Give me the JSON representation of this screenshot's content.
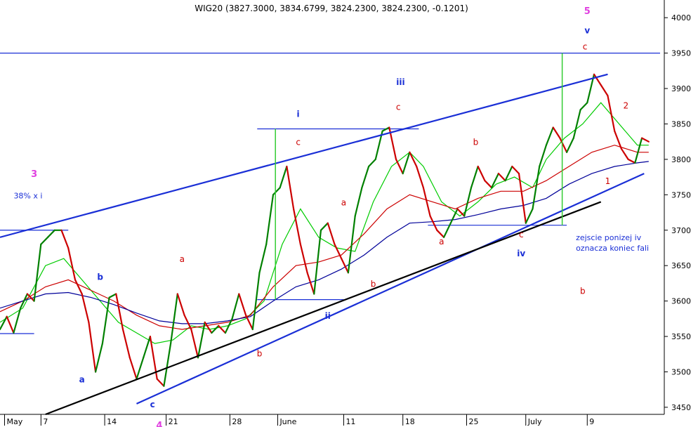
{
  "chart_data": {
    "type": "line",
    "title": "WIG20 (3827.3000, 3834.6799, 3824.2300, 3824.2300, -0.1201)",
    "ylim": [
      3440,
      4020
    ],
    "y_ticks": [
      "3450",
      "3500",
      "3550",
      "3600",
      "3650",
      "3700",
      "3750",
      "3800",
      "3850",
      "3900",
      "3950",
      "4000"
    ],
    "x_ticks": [
      "May",
      "7",
      "14",
      "21",
      "28",
      "June",
      "11",
      "18",
      "25",
      "July",
      "9"
    ],
    "grid": false,
    "colors": {
      "price_up": "#008000",
      "price_down": "#cc0000",
      "ma_fast": "#00cc00",
      "ma_mid": "#cc0000",
      "ma_slow": "#000099",
      "trend_blue": "#1a2fd6",
      "trend_black": "#000000",
      "level_line": "#1a2fd6",
      "marker_green": "#33cc33",
      "label_red": "#cc0000",
      "label_navy": "#1a2fd6",
      "label_magenta": "#e040e0"
    },
    "price_path": [
      [
        0,
        3560
      ],
      [
        3,
        3578
      ],
      [
        6,
        3555
      ],
      [
        9,
        3590
      ],
      [
        12,
        3610
      ],
      [
        15,
        3600
      ],
      [
        18,
        3680
      ],
      [
        21,
        3690
      ],
      [
        24,
        3700
      ],
      [
        27,
        3700
      ],
      [
        30,
        3675
      ],
      [
        33,
        3630
      ],
      [
        36,
        3610
      ],
      [
        39,
        3570
      ],
      [
        42,
        3500
      ],
      [
        45,
        3540
      ],
      [
        48,
        3605
      ],
      [
        51,
        3610
      ],
      [
        54,
        3560
      ],
      [
        57,
        3520
      ],
      [
        60,
        3490
      ],
      [
        63,
        3520
      ],
      [
        66,
        3550
      ],
      [
        69,
        3490
      ],
      [
        72,
        3480
      ],
      [
        75,
        3540
      ],
      [
        78,
        3610
      ],
      [
        81,
        3580
      ],
      [
        84,
        3560
      ],
      [
        87,
        3520
      ],
      [
        90,
        3570
      ],
      [
        93,
        3555
      ],
      [
        96,
        3565
      ],
      [
        99,
        3555
      ],
      [
        102,
        3575
      ],
      [
        105,
        3610
      ],
      [
        108,
        3580
      ],
      [
        111,
        3560
      ],
      [
        114,
        3640
      ],
      [
        117,
        3680
      ],
      [
        120,
        3750
      ],
      [
        123,
        3760
      ],
      [
        126,
        3790
      ],
      [
        129,
        3730
      ],
      [
        132,
        3680
      ],
      [
        135,
        3640
      ],
      [
        138,
        3610
      ],
      [
        141,
        3700
      ],
      [
        144,
        3710
      ],
      [
        147,
        3680
      ],
      [
        150,
        3660
      ],
      [
        153,
        3640
      ],
      [
        156,
        3720
      ],
      [
        159,
        3760
      ],
      [
        162,
        3790
      ],
      [
        165,
        3800
      ],
      [
        168,
        3840
      ],
      [
        171,
        3845
      ],
      [
        174,
        3800
      ],
      [
        177,
        3780
      ],
      [
        180,
        3810
      ],
      [
        183,
        3790
      ],
      [
        186,
        3760
      ],
      [
        189,
        3720
      ],
      [
        192,
        3700
      ],
      [
        195,
        3690
      ],
      [
        198,
        3710
      ],
      [
        201,
        3730
      ],
      [
        204,
        3720
      ],
      [
        207,
        3760
      ],
      [
        210,
        3790
      ],
      [
        213,
        3770
      ],
      [
        216,
        3760
      ],
      [
        219,
        3780
      ],
      [
        222,
        3770
      ],
      [
        225,
        3790
      ],
      [
        228,
        3780
      ],
      [
        231,
        3710
      ],
      [
        234,
        3730
      ],
      [
        237,
        3790
      ],
      [
        240,
        3820
      ],
      [
        243,
        3845
      ],
      [
        246,
        3830
      ],
      [
        249,
        3810
      ],
      [
        252,
        3830
      ],
      [
        255,
        3870
      ],
      [
        258,
        3880
      ],
      [
        261,
        3920
      ],
      [
        264,
        3905
      ],
      [
        267,
        3890
      ],
      [
        270,
        3840
      ],
      [
        273,
        3815
      ],
      [
        276,
        3800
      ],
      [
        279,
        3795
      ],
      [
        282,
        3830
      ],
      [
        285,
        3825
      ]
    ],
    "moving_averages": [
      {
        "name": "",
        "color": "ma_fast",
        "points": [
          [
            0,
            3570
          ],
          [
            10,
            3590
          ],
          [
            20,
            3650
          ],
          [
            28,
            3660
          ],
          [
            36,
            3630
          ],
          [
            44,
            3600
          ],
          [
            52,
            3570
          ],
          [
            60,
            3555
          ],
          [
            68,
            3540
          ],
          [
            76,
            3545
          ],
          [
            84,
            3565
          ],
          [
            92,
            3560
          ],
          [
            100,
            3565
          ],
          [
            108,
            3575
          ],
          [
            116,
            3600
          ],
          [
            124,
            3680
          ],
          [
            132,
            3730
          ],
          [
            140,
            3690
          ],
          [
            148,
            3675
          ],
          [
            156,
            3670
          ],
          [
            164,
            3740
          ],
          [
            172,
            3790
          ],
          [
            180,
            3810
          ],
          [
            186,
            3790
          ],
          [
            194,
            3740
          ],
          [
            202,
            3720
          ],
          [
            210,
            3740
          ],
          [
            218,
            3765
          ],
          [
            226,
            3775
          ],
          [
            234,
            3760
          ],
          [
            240,
            3800
          ],
          [
            248,
            3830
          ],
          [
            256,
            3850
          ],
          [
            264,
            3880
          ],
          [
            272,
            3850
          ],
          [
            280,
            3820
          ],
          [
            285,
            3820
          ]
        ]
      },
      {
        "name": "",
        "color": "ma_mid",
        "points": [
          [
            0,
            3585
          ],
          [
            10,
            3600
          ],
          [
            20,
            3620
          ],
          [
            30,
            3630
          ],
          [
            40,
            3615
          ],
          [
            50,
            3600
          ],
          [
            60,
            3580
          ],
          [
            70,
            3565
          ],
          [
            80,
            3560
          ],
          [
            90,
            3565
          ],
          [
            100,
            3570
          ],
          [
            110,
            3580
          ],
          [
            120,
            3620
          ],
          [
            130,
            3650
          ],
          [
            140,
            3655
          ],
          [
            150,
            3665
          ],
          [
            160,
            3695
          ],
          [
            170,
            3730
          ],
          [
            180,
            3750
          ],
          [
            190,
            3740
          ],
          [
            200,
            3730
          ],
          [
            210,
            3745
          ],
          [
            220,
            3755
          ],
          [
            230,
            3755
          ],
          [
            240,
            3770
          ],
          [
            250,
            3790
          ],
          [
            260,
            3810
          ],
          [
            270,
            3820
          ],
          [
            280,
            3810
          ],
          [
            285,
            3810
          ]
        ]
      },
      {
        "name": "",
        "color": "ma_slow",
        "points": [
          [
            0,
            3590
          ],
          [
            10,
            3600
          ],
          [
            20,
            3610
          ],
          [
            30,
            3612
          ],
          [
            40,
            3605
          ],
          [
            50,
            3595
          ],
          [
            60,
            3583
          ],
          [
            70,
            3572
          ],
          [
            80,
            3568
          ],
          [
            90,
            3568
          ],
          [
            100,
            3572
          ],
          [
            110,
            3578
          ],
          [
            120,
            3600
          ],
          [
            130,
            3620
          ],
          [
            140,
            3630
          ],
          [
            150,
            3645
          ],
          [
            160,
            3665
          ],
          [
            170,
            3690
          ],
          [
            180,
            3710
          ],
          [
            190,
            3712
          ],
          [
            200,
            3715
          ],
          [
            210,
            3722
          ],
          [
            220,
            3730
          ],
          [
            230,
            3735
          ],
          [
            240,
            3745
          ],
          [
            250,
            3765
          ],
          [
            260,
            3780
          ],
          [
            270,
            3790
          ],
          [
            280,
            3795
          ],
          [
            285,
            3797
          ]
        ]
      }
    ],
    "trendlines": [
      {
        "color": "trend_blue",
        "width": 2.2,
        "from": [
          0,
          3690
        ],
        "to": [
          267,
          3920
        ]
      },
      {
        "color": "trend_blue",
        "width": 2.2,
        "from": [
          60,
          3455
        ],
        "to": [
          283,
          3780
        ]
      },
      {
        "color": "trend_black",
        "width": 2.2,
        "from": [
          20,
          3440
        ],
        "to": [
          264,
          3740
        ]
      }
    ],
    "level_lines": [
      {
        "color": "level_line",
        "from": [
          0,
          3950
        ],
        "to": [
          290,
          3950
        ]
      },
      {
        "color": "level_line",
        "from": [
          0,
          3700
        ],
        "to": [
          30,
          3700
        ]
      },
      {
        "color": "level_line",
        "from": [
          0,
          3554
        ],
        "to": [
          15,
          3554
        ]
      },
      {
        "color": "level_line",
        "from": [
          113,
          3843
        ],
        "to": [
          184,
          3843
        ]
      },
      {
        "color": "level_line",
        "from": [
          113,
          3602
        ],
        "to": [
          151,
          3602
        ]
      },
      {
        "color": "level_line",
        "from": [
          188,
          3707
        ],
        "to": [
          249,
          3707
        ]
      }
    ],
    "vertical_markers": [
      {
        "color": "marker_green",
        "x": 121,
        "y_from": 3602,
        "y_to": 3843
      },
      {
        "color": "marker_green",
        "x": 247,
        "y_from": 3707,
        "y_to": 3950
      }
    ],
    "x_tick_positions": [
      2,
      18,
      46,
      73,
      101,
      122,
      151,
      177,
      205,
      231,
      258
    ],
    "annotations": [
      {
        "text": "3",
        "x": 15,
        "y": 3775,
        "color": "label_magenta"
      },
      {
        "text": "38% x i",
        "x": 6,
        "y": 3745,
        "color": "label_navy"
      },
      {
        "text": "a",
        "x": 36,
        "y": 3485,
        "color": "label_navy"
      },
      {
        "text": "b",
        "x": 44,
        "y": 3630,
        "color": "label_navy"
      },
      {
        "text": "c",
        "x": 67,
        "y": 3450,
        "color": "label_navy"
      },
      {
        "text": "4",
        "x": 70,
        "y": 3420,
        "color": "label_magenta"
      },
      {
        "text": "a",
        "x": 80,
        "y": 3655,
        "color": "label_red"
      },
      {
        "text": "b",
        "x": 114,
        "y": 3522,
        "color": "label_red"
      },
      {
        "text": "i",
        "x": 131,
        "y": 3860,
        "color": "label_navy"
      },
      {
        "text": "c",
        "x": 131,
        "y": 3820,
        "color": "label_red"
      },
      {
        "text": "a",
        "x": 151,
        "y": 3735,
        "color": "label_red"
      },
      {
        "text": "ii",
        "x": 144,
        "y": 3575,
        "color": "label_navy"
      },
      {
        "text": "b",
        "x": 164,
        "y": 3620,
        "color": "label_red"
      },
      {
        "text": "iii",
        "x": 176,
        "y": 3905,
        "color": "label_navy"
      },
      {
        "text": "c",
        "x": 175,
        "y": 3870,
        "color": "label_red"
      },
      {
        "text": "a",
        "x": 194,
        "y": 3680,
        "color": "label_red"
      },
      {
        "text": "b",
        "x": 209,
        "y": 3820,
        "color": "label_red"
      },
      {
        "text": "c",
        "x": 229,
        "y": 3690,
        "color": "label_red"
      },
      {
        "text": "iv",
        "x": 229,
        "y": 3663,
        "color": "label_navy"
      },
      {
        "text": "5",
        "x": 258,
        "y": 4005,
        "color": "label_magenta"
      },
      {
        "text": "v",
        "x": 258,
        "y": 3978,
        "color": "label_navy"
      },
      {
        "text": "c",
        "x": 257,
        "y": 3955,
        "color": "label_red"
      },
      {
        "text": "2",
        "x": 275,
        "y": 3872,
        "color": "label_red"
      },
      {
        "text": "1",
        "x": 267,
        "y": 3765,
        "color": "label_red"
      },
      {
        "text": "b",
        "x": 256,
        "y": 3610,
        "color": "label_red"
      },
      {
        "text": "zejscie ponizej iv",
        "x": 253,
        "y": 3686,
        "color": "label_navy"
      },
      {
        "text": "oznacza koniec fali",
        "x": 253,
        "y": 3671,
        "color": "label_navy"
      }
    ]
  }
}
